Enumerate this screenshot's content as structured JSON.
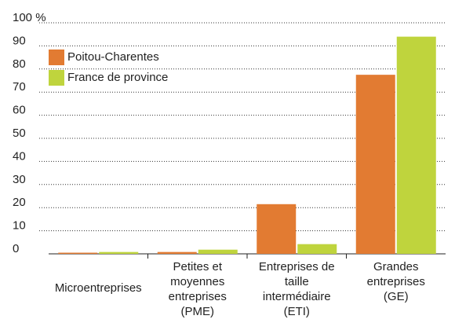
{
  "chart_data": {
    "type": "bar",
    "categories": [
      [
        "Microentreprises"
      ],
      [
        "Petites et",
        "moyennes",
        "entreprises",
        "(PME)"
      ],
      [
        "Entreprises de",
        "taille",
        "intermédiaire",
        "(ETI)"
      ],
      [
        "Grandes",
        "entreprises",
        "(GE)"
      ]
    ],
    "series": [
      {
        "name": "Poitou-Charentes",
        "color": "#e27b32",
        "values": [
          0.5,
          0.8,
          21.5,
          77.5
        ]
      },
      {
        "name": "France de province",
        "color": "#bfd43d",
        "values": [
          0.8,
          1.8,
          4.2,
          94
        ]
      }
    ],
    "ylim": [
      0,
      100
    ],
    "yticks": [
      0,
      10,
      20,
      30,
      40,
      50,
      60,
      70,
      80,
      90,
      {
        "value": 100,
        "label": "100 %"
      }
    ],
    "grid": true,
    "legend": "upper-left"
  }
}
